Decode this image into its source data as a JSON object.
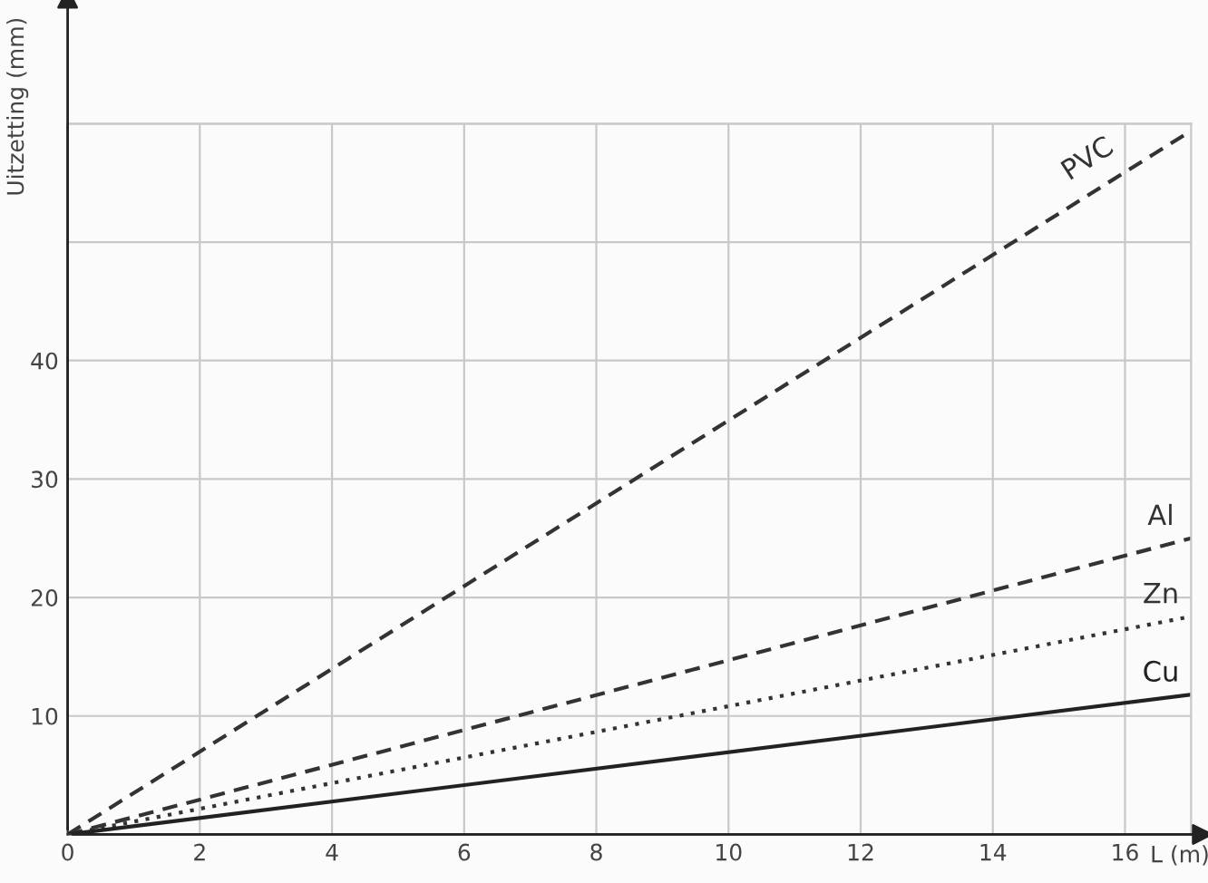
{
  "chart_data": {
    "type": "line",
    "xlabel": "L (m)",
    "ylabel": "Uitzetting (mm)",
    "xlim": [
      0,
      17
    ],
    "ylim": [
      0,
      60
    ],
    "xticks": [
      0,
      2,
      4,
      6,
      8,
      10,
      12,
      14,
      16
    ],
    "yticks": [
      {
        "value": 0,
        "label": null
      },
      10,
      20,
      30,
      40,
      {
        "value": 50,
        "label": null
      },
      {
        "value": 60,
        "label": null
      }
    ],
    "grid": true,
    "legend": false,
    "marker": "none",
    "x": [
      0,
      17
    ],
    "series": [
      {
        "name": "PVC",
        "color": "#333333",
        "line_style": "dashed",
        "values": [
          0,
          59.4
        ]
      },
      {
        "name": "Al",
        "color": "#333333",
        "line_style": "dashed",
        "values": [
          0,
          25
        ]
      },
      {
        "name": "Zn",
        "color": "#333333",
        "line_style": "dotted",
        "values": [
          0,
          18.4
        ]
      },
      {
        "name": "Cu",
        "color": "#222222",
        "line_style": "solid",
        "values": [
          0,
          11.8
        ]
      }
    ]
  }
}
